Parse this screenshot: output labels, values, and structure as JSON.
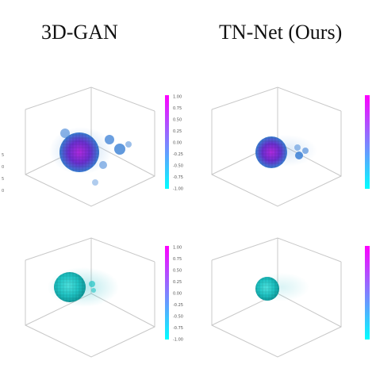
{
  "column_titles": [
    "3D-GAN",
    "TN-Net (Ours)"
  ],
  "colorbar_ticks": [
    "1.00",
    "0.75",
    "0.50",
    "0.25",
    "0.00",
    "-0.25",
    "-0.50",
    "-0.75",
    "-1.00"
  ],
  "left_edge_ticks": [
    "5",
    "0",
    "5",
    "0"
  ],
  "colors": {
    "colorbar_top": "#ff00ff",
    "colorbar_bottom": "#00ffff",
    "voxel_purple": "#6a2fd0",
    "voxel_magenta": "#b02ae0",
    "voxel_blue": "#3a7fd5",
    "voxel_cyan": "#1fc4c4",
    "axis_line": "#c8c8c8"
  }
}
